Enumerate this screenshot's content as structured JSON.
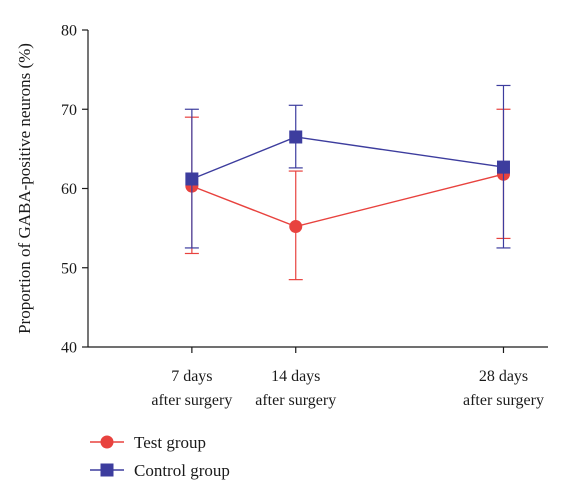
{
  "chart_data": {
    "type": "line",
    "title": "",
    "ylabel": "Proportion of GABA-positive neurons (%)",
    "xlabel": "",
    "categories": [
      "7 days after surgery",
      "14 days after surgery",
      "28 days after surgery"
    ],
    "x_values": [
      7,
      14,
      28
    ],
    "x_labels": [
      [
        "7 days",
        "after surgery"
      ],
      [
        "14 days",
        "after surgery"
      ],
      [
        "28 days",
        "after surgery"
      ]
    ],
    "ylim": [
      40,
      80
    ],
    "y_ticks": [
      40,
      50,
      60,
      70,
      80
    ],
    "grid": false,
    "legend_position": "bottom-left",
    "series": [
      {
        "name": "Test group",
        "color": "#e8423e",
        "marker": "circle",
        "values": [
          60.3,
          55.2,
          61.8
        ],
        "err_low": [
          51.8,
          48.5,
          53.7
        ],
        "err_high": [
          69.0,
          62.2,
          70.0
        ]
      },
      {
        "name": "Control group",
        "color": "#3d3d9e",
        "marker": "square",
        "values": [
          61.2,
          66.5,
          62.7
        ],
        "err_low": [
          52.5,
          62.6,
          52.5
        ],
        "err_high": [
          70.0,
          70.5,
          73.0
        ]
      }
    ]
  }
}
